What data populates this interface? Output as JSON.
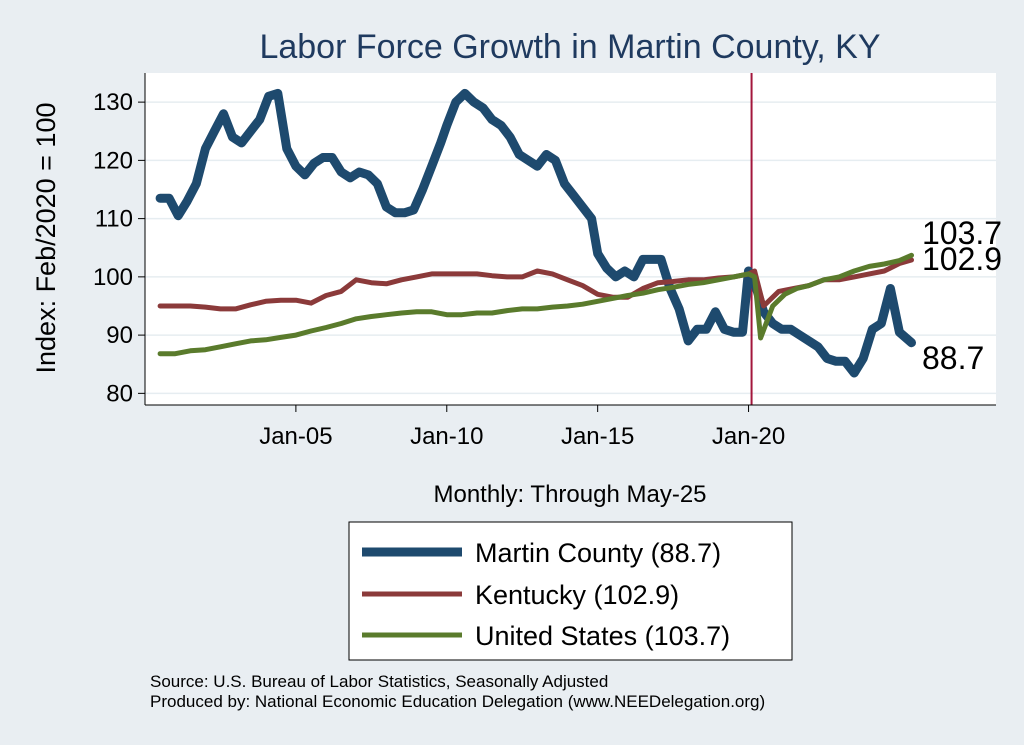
{
  "chart_data": {
    "type": "line",
    "title": "Labor Force Growth in Martin  County, KY",
    "ylabel": "Index: Feb/2020 = 100",
    "xlabel": "Monthly: Through May-25",
    "ylim": [
      78,
      135
    ],
    "xlim": [
      2000.0,
      2028.2
    ],
    "yticks": [
      80,
      90,
      100,
      110,
      120,
      130
    ],
    "xticks": [
      {
        "value": 2005.0,
        "label": "Jan-05"
      },
      {
        "value": 2010.0,
        "label": "Jan-10"
      },
      {
        "value": 2015.0,
        "label": "Jan-15"
      },
      {
        "value": 2020.0,
        "label": "Jan-20"
      }
    ],
    "reference_line": {
      "x": 2020.1,
      "color": "#a3163c"
    },
    "series": [
      {
        "name": "Martin  County (88.7)",
        "color": "#1e4a6e",
        "end_label": "88.7",
        "x": [
          2000.5,
          2000.8,
          2001.1,
          2001.4,
          2001.7,
          2002.0,
          2002.3,
          2002.6,
          2002.9,
          2003.2,
          2003.5,
          2003.8,
          2004.1,
          2004.4,
          2004.7,
          2005.0,
          2005.3,
          2005.6,
          2005.9,
          2006.2,
          2006.5,
          2006.8,
          2007.1,
          2007.4,
          2007.7,
          2008.0,
          2008.3,
          2008.6,
          2008.9,
          2009.2,
          2009.5,
          2009.8,
          2010.0,
          2010.3,
          2010.6,
          2010.9,
          2011.2,
          2011.5,
          2011.8,
          2012.1,
          2012.4,
          2012.7,
          2013.0,
          2013.3,
          2013.6,
          2013.9,
          2014.2,
          2014.5,
          2014.8,
          2015.0,
          2015.3,
          2015.6,
          2015.9,
          2016.2,
          2016.5,
          2016.8,
          2017.1,
          2017.4,
          2017.7,
          2018.0,
          2018.3,
          2018.6,
          2018.9,
          2019.2,
          2019.5,
          2019.8,
          2020.0,
          2020.2,
          2020.5,
          2020.8,
          2021.1,
          2021.4,
          2021.7,
          2022.0,
          2022.3,
          2022.6,
          2022.9,
          2023.2,
          2023.5,
          2023.8,
          2024.1,
          2024.4,
          2024.7,
          2025.0,
          2025.4
        ],
        "y": [
          113.5,
          113.5,
          110.5,
          113,
          116,
          122,
          125,
          128,
          124,
          123,
          125,
          127,
          131,
          131.5,
          122,
          119,
          117.5,
          119.5,
          120.5,
          120.5,
          118,
          117,
          118,
          117.5,
          116,
          112,
          111,
          111,
          111.5,
          115,
          119,
          123,
          126,
          130,
          131.5,
          130,
          129,
          127,
          126,
          124,
          121,
          120,
          119,
          121,
          120,
          116,
          114,
          112,
          110,
          104,
          101.5,
          100,
          101,
          100,
          103,
          103,
          103,
          98,
          94.5,
          89,
          91,
          91,
          94,
          91,
          90.5,
          90.5,
          101,
          99,
          94,
          92,
          91,
          91,
          90,
          89,
          88,
          86,
          85.5,
          85.5,
          83.5,
          86,
          91,
          92,
          98,
          90.5,
          88.7
        ]
      },
      {
        "name": "Kentucky (102.9)",
        "color": "#8b3a3a",
        "end_label": "102.9",
        "x": [
          2000.5,
          2001.0,
          2001.5,
          2002.0,
          2002.5,
          2003.0,
          2003.5,
          2004.0,
          2004.5,
          2005.0,
          2005.5,
          2006.0,
          2006.5,
          2007.0,
          2007.5,
          2008.0,
          2008.5,
          2009.0,
          2009.5,
          2010.0,
          2010.5,
          2011.0,
          2011.5,
          2012.0,
          2012.5,
          2013.0,
          2013.5,
          2014.0,
          2014.5,
          2015.0,
          2015.5,
          2016.0,
          2016.5,
          2017.0,
          2017.5,
          2018.0,
          2018.5,
          2019.0,
          2019.5,
          2020.0,
          2020.2,
          2020.5,
          2021.0,
          2021.5,
          2022.0,
          2022.5,
          2023.0,
          2023.5,
          2024.0,
          2024.5,
          2025.0,
          2025.4
        ],
        "y": [
          95,
          95,
          95,
          94.8,
          94.5,
          94.5,
          95.2,
          95.8,
          96,
          96,
          95.5,
          96.8,
          97.5,
          99.5,
          99,
          98.8,
          99.5,
          100,
          100.5,
          100.5,
          100.5,
          100.5,
          100.2,
          100,
          100,
          101,
          100.5,
          99.5,
          98.5,
          97,
          96.5,
          96.5,
          98,
          99,
          99.2,
          99.5,
          99.5,
          99.8,
          100,
          100.5,
          101,
          95,
          97.5,
          98,
          98.5,
          99.5,
          99.5,
          100,
          100.5,
          101,
          102.3,
          102.9
        ]
      },
      {
        "name": "United States (103.7)",
        "color": "#5a7b2c",
        "end_label": "103.7",
        "x": [
          2000.5,
          2001.0,
          2001.5,
          2002.0,
          2002.5,
          2003.0,
          2003.5,
          2004.0,
          2004.5,
          2005.0,
          2005.5,
          2006.0,
          2006.5,
          2007.0,
          2007.5,
          2008.0,
          2008.5,
          2009.0,
          2009.5,
          2010.0,
          2010.5,
          2011.0,
          2011.5,
          2012.0,
          2012.5,
          2013.0,
          2013.5,
          2014.0,
          2014.5,
          2015.0,
          2015.5,
          2016.0,
          2016.5,
          2017.0,
          2017.5,
          2018.0,
          2018.5,
          2019.0,
          2019.5,
          2020.0,
          2020.2,
          2020.4,
          2020.8,
          2021.2,
          2021.6,
          2022.0,
          2022.5,
          2023.0,
          2023.5,
          2024.0,
          2024.5,
          2025.0,
          2025.4
        ],
        "y": [
          86.8,
          86.8,
          87.3,
          87.5,
          88,
          88.5,
          89,
          89.2,
          89.6,
          90,
          90.7,
          91.3,
          92,
          92.8,
          93.2,
          93.5,
          93.8,
          94,
          94,
          93.5,
          93.5,
          93.8,
          93.8,
          94.2,
          94.5,
          94.5,
          94.8,
          95,
          95.3,
          95.8,
          96.3,
          96.8,
          97.2,
          97.8,
          98.2,
          98.7,
          99,
          99.5,
          100,
          100.5,
          100,
          89.5,
          95,
          97,
          98,
          98.5,
          99.5,
          100,
          101,
          101.8,
          102.2,
          102.8,
          103.7
        ]
      }
    ]
  },
  "legend": {
    "items": [
      "Martin  County (88.7)",
      "Kentucky (102.9)",
      "United States (103.7)"
    ]
  },
  "footer": {
    "source": "Source: U.S. Bureau of Labor Statistics, Seasonally Adjusted",
    "produced": "Produced by: National Economic Education Delegation (www.NEEDelegation.org)"
  }
}
